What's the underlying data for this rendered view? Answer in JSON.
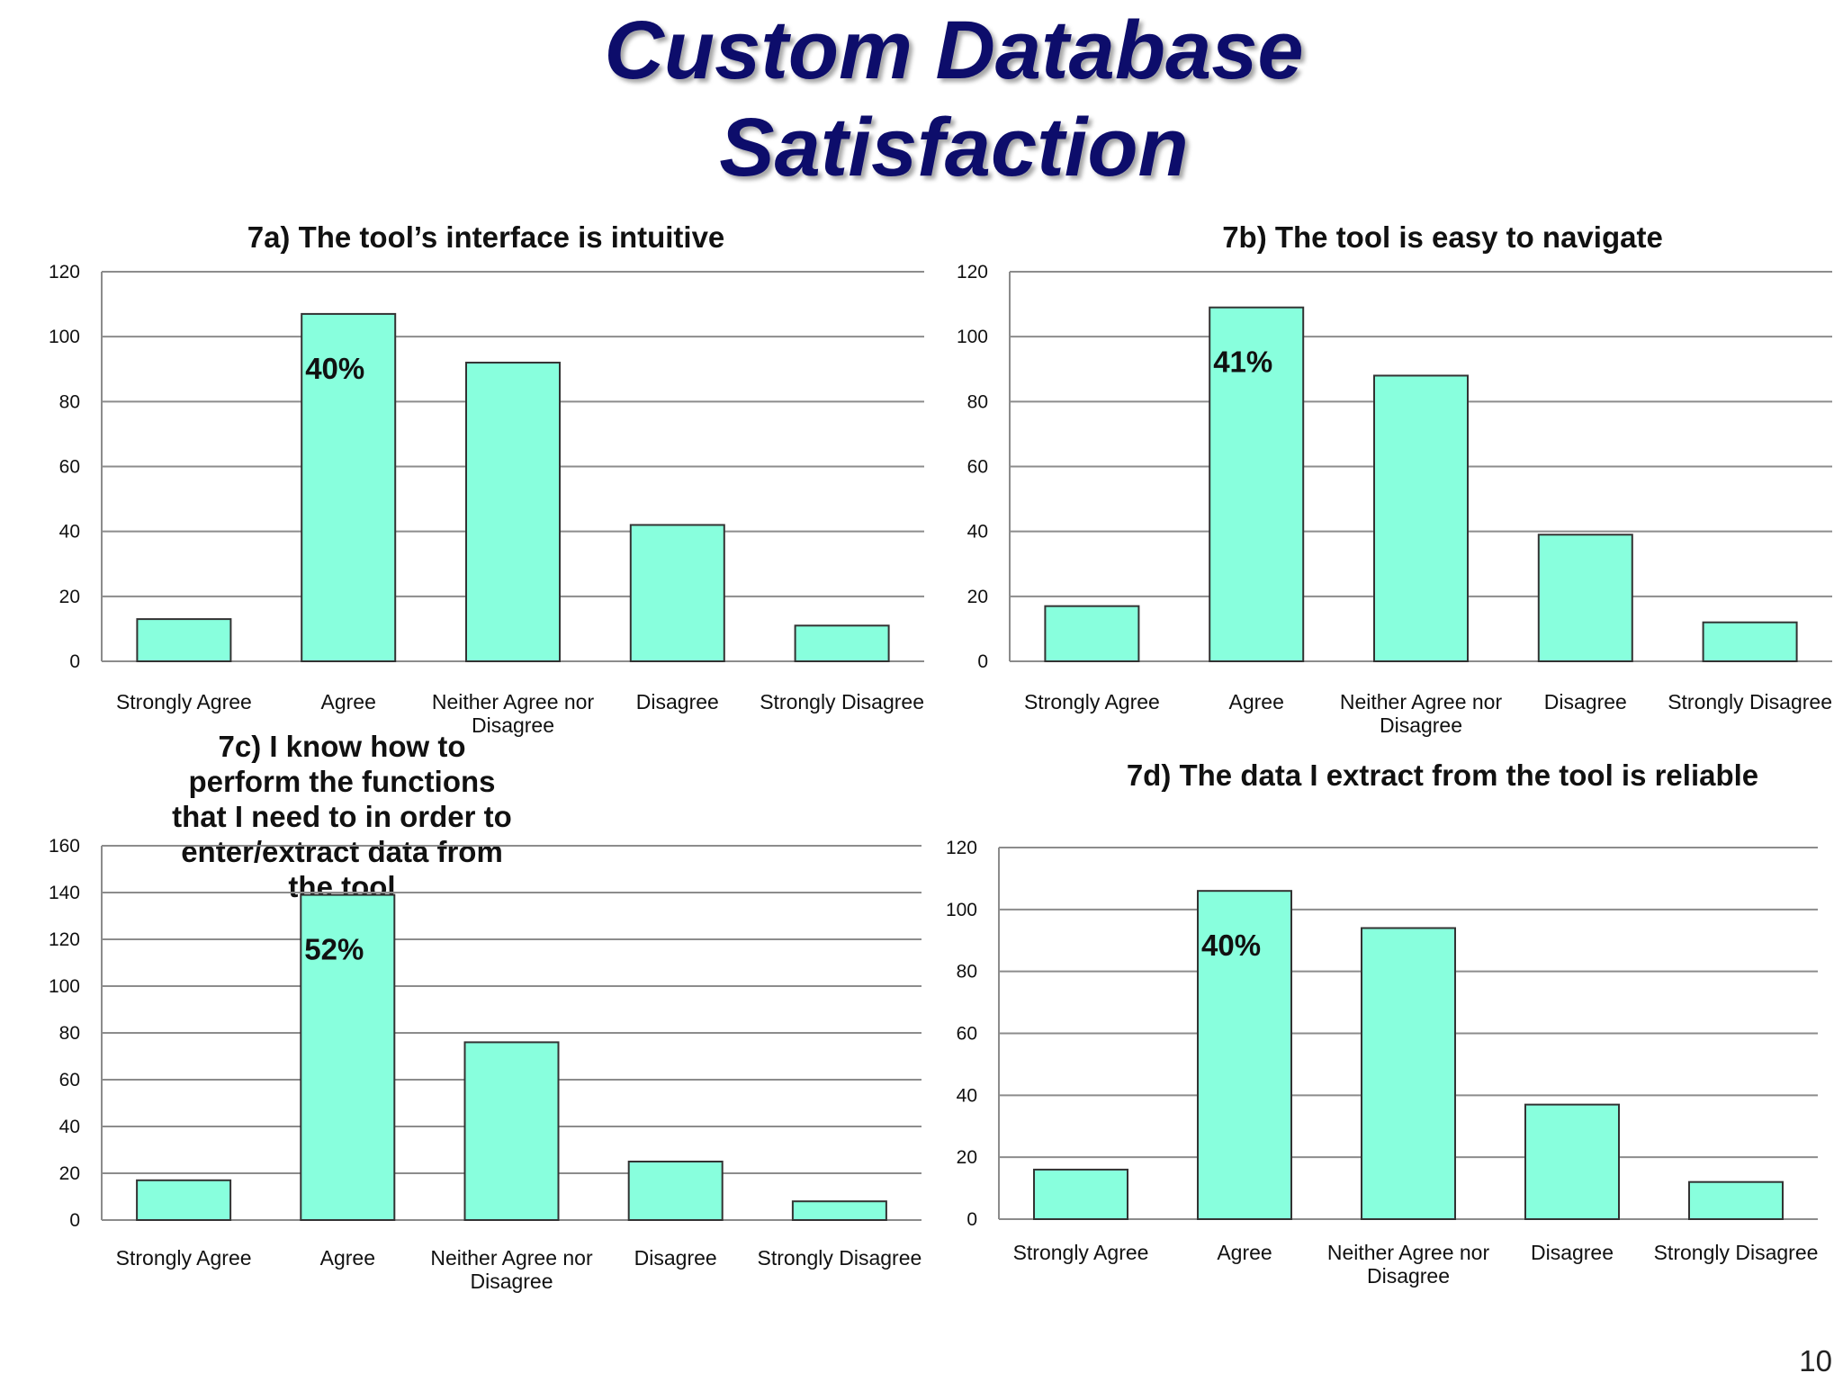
{
  "slide": {
    "title_line1": "Custom Database",
    "title_line2": "Satisfaction",
    "page_number": "10"
  },
  "colors": {
    "title": "#0d0d6b",
    "bar_fill": "#88ffdd",
    "bar_stroke": "#333333",
    "grid": "#8c8c8c"
  },
  "chart_data": [
    {
      "type": "bar",
      "title": "7a) The tool’s interface is intuitive",
      "categories": [
        "Strongly Agree",
        "Agree",
        "Neither Agree nor Disagree",
        "Disagree",
        "Strongly Disagree"
      ],
      "values": [
        13,
        107,
        92,
        42,
        11
      ],
      "ylim": [
        0,
        120
      ],
      "yticks": [
        0,
        20,
        40,
        60,
        80,
        100,
        120
      ],
      "annotation": {
        "category": "Agree",
        "text": "40%"
      },
      "grid": true,
      "legend": "none"
    },
    {
      "type": "bar",
      "title": "7b) The tool is easy to navigate",
      "categories": [
        "Strongly Agree",
        "Agree",
        "Neither Agree nor Disagree",
        "Disagree",
        "Strongly Disagree"
      ],
      "values": [
        17,
        109,
        88,
        39,
        12
      ],
      "ylim": [
        0,
        120
      ],
      "yticks": [
        0,
        20,
        40,
        60,
        80,
        100,
        120
      ],
      "annotation": {
        "category": "Agree",
        "text": "41%"
      },
      "grid": true,
      "legend": "none"
    },
    {
      "type": "bar",
      "title": "7c) I know how to perform the functions that I need to in order to enter/extract data from the tool",
      "categories": [
        "Strongly Agree",
        "Agree",
        "Neither Agree nor Disagree",
        "Disagree",
        "Strongly Disagree"
      ],
      "values": [
        17,
        139,
        76,
        25,
        8
      ],
      "ylim": [
        0,
        160
      ],
      "yticks": [
        0,
        20,
        40,
        60,
        80,
        100,
        120,
        140,
        160
      ],
      "annotation": {
        "category": "Agree",
        "text": "52%"
      },
      "grid": true,
      "legend": "none"
    },
    {
      "type": "bar",
      "title": "7d) The data I extract from the tool is reliable",
      "categories": [
        "Strongly Agree",
        "Agree",
        "Neither Agree nor Disagree",
        "Disagree",
        "Strongly Disagree"
      ],
      "values": [
        16,
        106,
        94,
        37,
        12
      ],
      "ylim": [
        0,
        120
      ],
      "yticks": [
        0,
        20,
        40,
        60,
        80,
        100,
        120
      ],
      "annotation": {
        "category": "Agree",
        "text": "40%"
      },
      "grid": true,
      "legend": "none"
    }
  ]
}
